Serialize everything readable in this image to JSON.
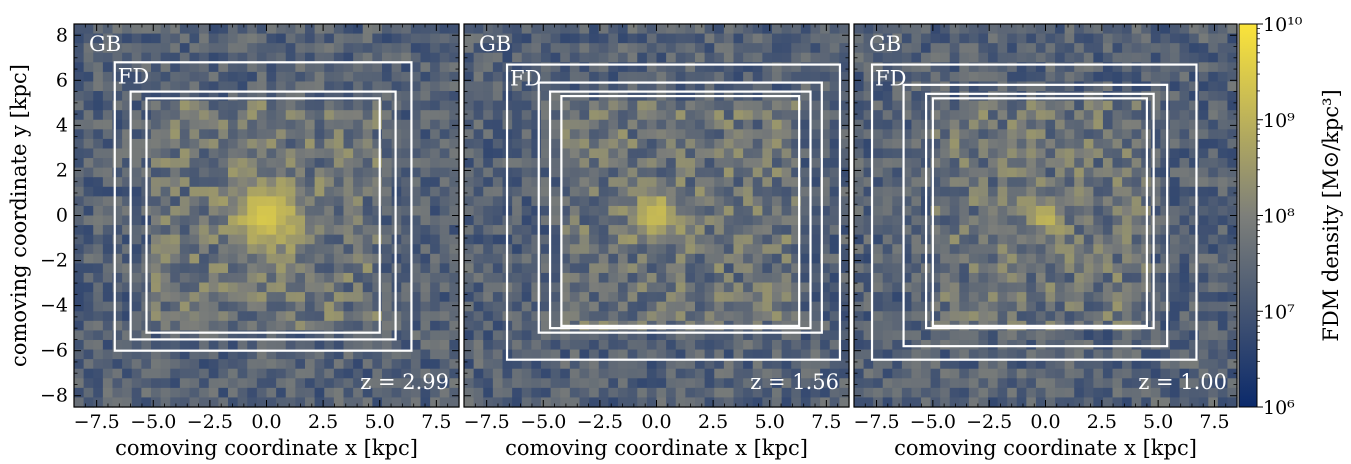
{
  "colors": {
    "cmap_low": "#0b2a6b",
    "cmap_mid": "#7d7f7a",
    "cmap_high": "#fbe43a",
    "box_stroke": "#ffffff"
  },
  "colorbar": {
    "label": "FDM density [M⊙/kpc³]",
    "scale": "log",
    "range": [
      1000000.0,
      10000000000.0
    ],
    "tick_labels": [
      "10¹⁰",
      "10⁹",
      "10⁸",
      "10⁷",
      "10⁶"
    ],
    "tick_values": [
      10000000000.0,
      1000000000.0,
      100000000.0,
      10000000.0,
      1000000.0
    ]
  },
  "chart_data": [
    {
      "type": "heatmap",
      "title": "",
      "xlabel": "comoving coordinate x [kpc]",
      "ylabel": "comoving coordinate y [kpc]",
      "xlim": [
        -8.5,
        8.5
      ],
      "ylim": [
        -8.5,
        8.5
      ],
      "xticks": [
        -7.5,
        -5.0,
        -2.5,
        0.0,
        2.5,
        5.0,
        7.5
      ],
      "xtick_labels": [
        "−7.5",
        "−5.0",
        "−2.5",
        "0.0",
        "2.5",
        "5.0",
        "7.5"
      ],
      "yticks": [
        8,
        6,
        4,
        2,
        0,
        -2,
        -4,
        -6,
        -8
      ],
      "ytick_labels": [
        "8",
        "6",
        "4",
        "2",
        "0",
        "−2",
        "−4",
        "−6",
        "−8"
      ],
      "region_labels": [
        "GB",
        "FD"
      ],
      "redshift_label": "z = 2.99",
      "peak_density": 3000000000.0,
      "core_center": [
        0.0,
        0.0
      ],
      "core_radius_kpc": 1.5,
      "boxes": [
        {
          "x0": -6.7,
          "x1": 6.4,
          "y0": -6.0,
          "y1": 6.8
        },
        {
          "x0": -6.0,
          "x1": 5.7,
          "y0": -5.5,
          "y1": 5.5
        },
        {
          "x0": -5.3,
          "x1": 5.0,
          "y0": -5.2,
          "y1": 5.2
        }
      ]
    },
    {
      "type": "heatmap",
      "title": "",
      "xlabel": "comoving coordinate x [kpc]",
      "ylabel": "",
      "xlim": [
        -8.5,
        8.5
      ],
      "ylim": [
        -8.5,
        8.5
      ],
      "xticks": [
        -7.5,
        -5.0,
        -2.5,
        0.0,
        2.5,
        5.0,
        7.5
      ],
      "xtick_labels": [
        "−7.5",
        "−5.0",
        "−2.5",
        "0.0",
        "2.5",
        "5.0",
        "7.5"
      ],
      "region_labels": [
        "GB",
        "FD"
      ],
      "redshift_label": "z = 1.56",
      "peak_density": 2000000000.0,
      "core_center": [
        0.0,
        0.0
      ],
      "core_radius_kpc": 1.0,
      "boxes": [
        {
          "x0": -6.6,
          "x1": 8.1,
          "y0": -6.4,
          "y1": 6.7
        },
        {
          "x0": -5.2,
          "x1": 7.3,
          "y0": -5.2,
          "y1": 5.9
        },
        {
          "x0": -4.7,
          "x1": 6.8,
          "y0": -5.0,
          "y1": 5.5
        },
        {
          "x0": -4.2,
          "x1": 6.3,
          "y0": -4.9,
          "y1": 5.3
        }
      ]
    },
    {
      "type": "heatmap",
      "title": "",
      "xlabel": "comoving coordinate x [kpc]",
      "ylabel": "",
      "xlim": [
        -8.5,
        8.5
      ],
      "ylim": [
        -8.5,
        8.5
      ],
      "xticks": [
        -7.5,
        -5.0,
        -2.5,
        0.0,
        2.5,
        5.0,
        7.5
      ],
      "xtick_labels": [
        "−7.5",
        "−5.0",
        "−2.5",
        "0.0",
        "2.5",
        "5.0",
        "7.5"
      ],
      "region_labels": [
        "GB",
        "FD"
      ],
      "redshift_label": "z = 1.00",
      "peak_density": 1500000000.0,
      "core_center": [
        0.0,
        0.0
      ],
      "core_radius_kpc": 0.7,
      "boxes": [
        {
          "x0": -7.7,
          "x1": 6.7,
          "y0": -6.4,
          "y1": 6.7
        },
        {
          "x0": -6.3,
          "x1": 5.4,
          "y0": -5.8,
          "y1": 5.8
        },
        {
          "x0": -5.3,
          "x1": 4.8,
          "y0": -5.0,
          "y1": 5.4
        },
        {
          "x0": -5.0,
          "x1": 4.5,
          "y0": -4.9,
          "y1": 5.2
        }
      ]
    }
  ]
}
